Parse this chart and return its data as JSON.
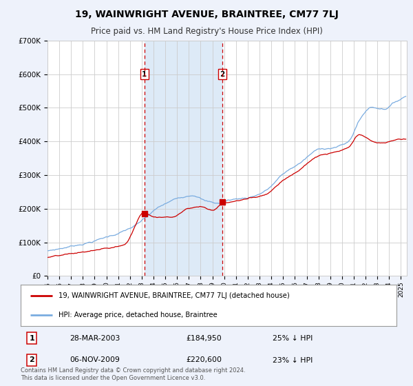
{
  "title": "19, WAINWRIGHT AVENUE, BRAINTREE, CM77 7LJ",
  "subtitle": "Price paid vs. HM Land Registry's House Price Index (HPI)",
  "ylabel_ticks": [
    "£0",
    "£100K",
    "£200K",
    "£300K",
    "£400K",
    "£500K",
    "£600K",
    "£700K"
  ],
  "ytick_values": [
    0,
    100000,
    200000,
    300000,
    400000,
    500000,
    600000,
    700000
  ],
  "ylim": [
    0,
    700000
  ],
  "xlim_start": 1995.0,
  "xlim_end": 2025.5,
  "background_color": "#eef2fb",
  "plot_bg_color": "#ffffff",
  "grid_color": "#cccccc",
  "red_line_color": "#cc0000",
  "blue_line_color": "#7aace0",
  "vline_color": "#cc0000",
  "span_color": "#ddeaf7",
  "marker1": {
    "date_num": 2003.23,
    "value": 184950,
    "label": "1",
    "date_str": "28-MAR-2003",
    "price": "£184,950",
    "pct": "25% ↓ HPI"
  },
  "marker2": {
    "date_num": 2009.85,
    "value": 220600,
    "label": "2",
    "date_str": "06-NOV-2009",
    "price": "£220,600",
    "pct": "23% ↓ HPI"
  },
  "legend_line1": "19, WAINWRIGHT AVENUE, BRAINTREE, CM77 7LJ (detached house)",
  "legend_line2": "HPI: Average price, detached house, Braintree",
  "footer": "Contains HM Land Registry data © Crown copyright and database right 2024.\nThis data is licensed under the Open Government Licence v3.0.",
  "xtick_years": [
    1995,
    1996,
    1997,
    1998,
    1999,
    2000,
    2001,
    2002,
    2003,
    2004,
    2005,
    2006,
    2007,
    2008,
    2009,
    2010,
    2011,
    2012,
    2013,
    2014,
    2015,
    2016,
    2017,
    2018,
    2019,
    2020,
    2021,
    2022,
    2023,
    2024,
    2025
  ]
}
